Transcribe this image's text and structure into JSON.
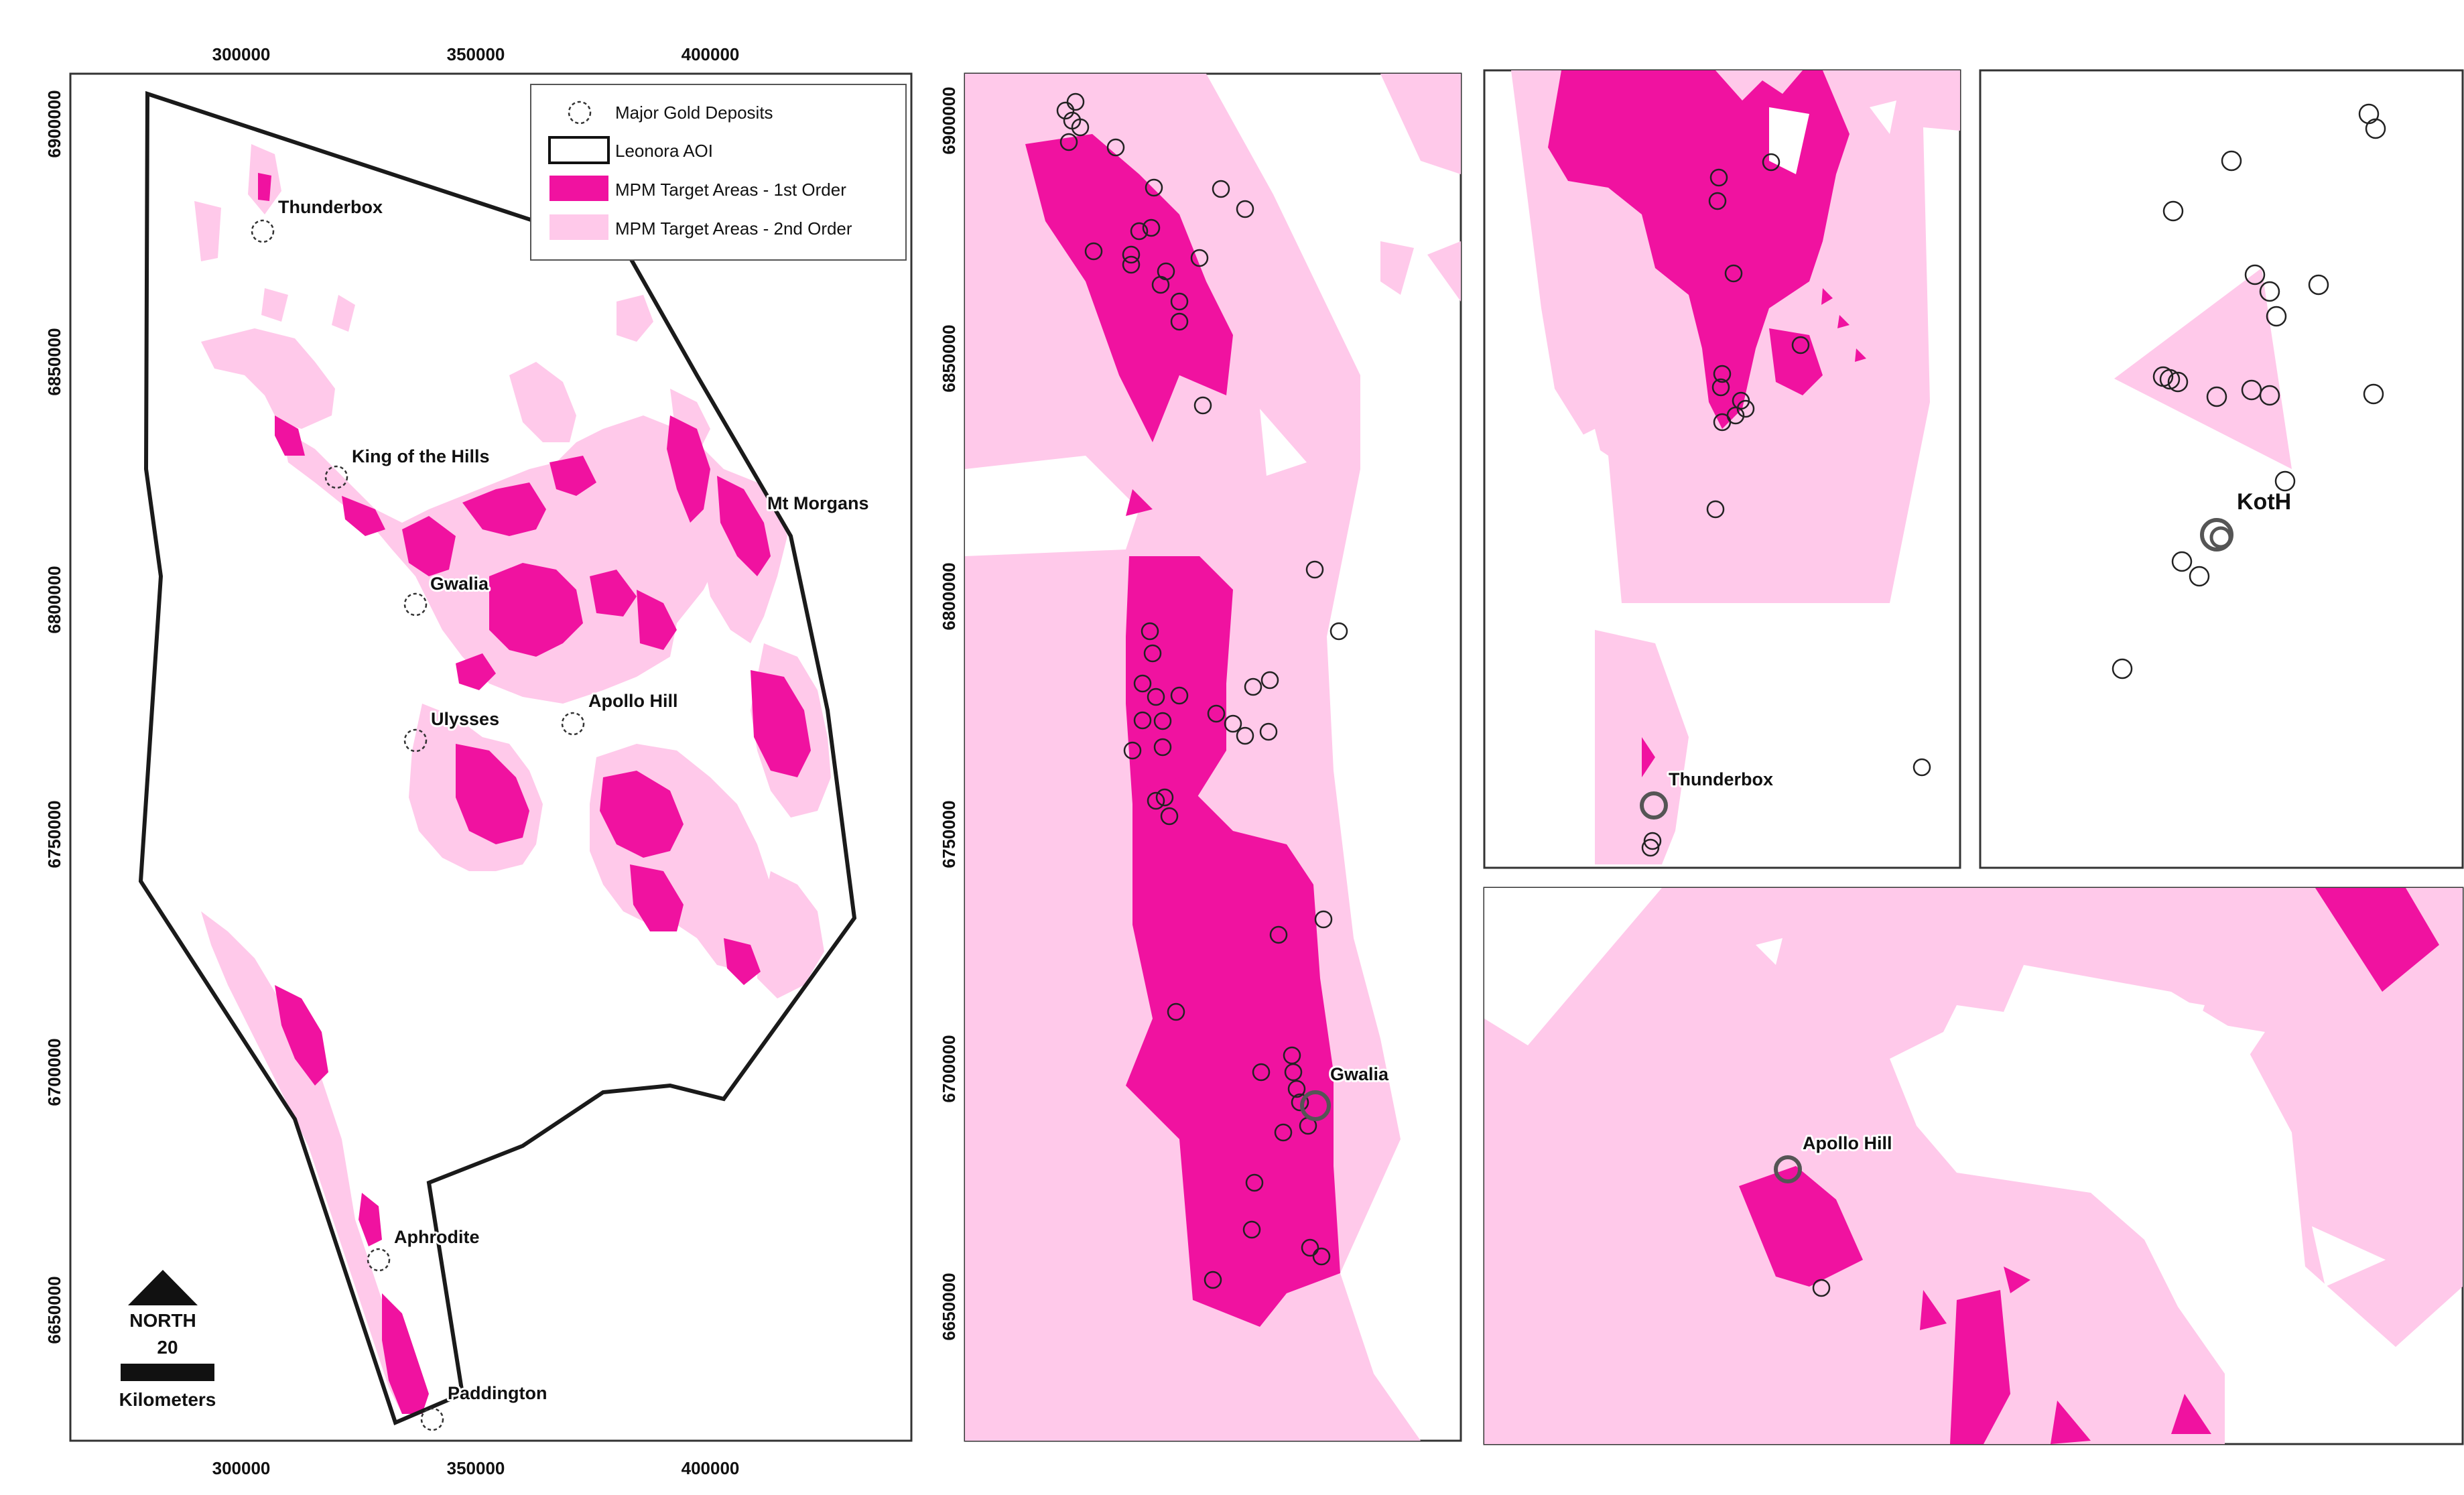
{
  "colors": {
    "first_order": "#f012a0",
    "second_order": "#ffc9ea",
    "aoi_outline": "#1a1a1a",
    "deposit_marker": "#222222"
  },
  "main_map": {
    "x_ticks": [
      "300000",
      "350000",
      "400000"
    ],
    "y_ticks": [
      "6900000",
      "6850000",
      "6800000",
      "6750000",
      "6700000",
      "6650000"
    ],
    "deposits": [
      {
        "name": "Thunderbox"
      },
      {
        "name": "King of the Hills"
      },
      {
        "name": "Mt Morgans"
      },
      {
        "name": "Gwalia"
      },
      {
        "name": "Apollo Hill"
      },
      {
        "name": "Ulysses"
      },
      {
        "name": "Aphrodite"
      },
      {
        "name": "Paddington"
      }
    ],
    "legend": {
      "items": [
        {
          "label": "Major Gold Deposits",
          "icon": "dashed-circle-icon"
        },
        {
          "label": "Leonora AOI",
          "icon": "outline-box-icon"
        },
        {
          "label": "MPM Target Areas - 1st Order",
          "icon": "magenta-swatch-icon"
        },
        {
          "label": "MPM Target Areas - 2nd Order",
          "icon": "pink-swatch-icon"
        }
      ]
    },
    "north_arrow": {
      "label": "NORTH"
    },
    "scale_bar": {
      "value": "20",
      "unit": "Kilometers"
    }
  },
  "gwalia_panel": {
    "y_ticks": [
      "6900000",
      "6850000",
      "6800000",
      "6750000",
      "6700000",
      "6650000"
    ],
    "deposit_label": "Gwalia"
  },
  "thunderbox_panel": {
    "deposit_label": "Thunderbox"
  },
  "koth_panel": {
    "deposit_label": "KotH"
  },
  "apollo_panel": {
    "deposit_label": "Apollo Hill"
  }
}
